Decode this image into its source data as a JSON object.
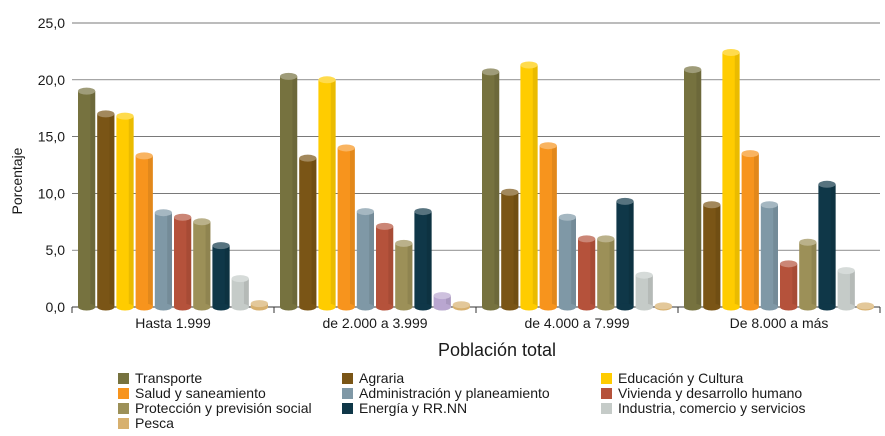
{
  "chart_data": {
    "type": "bar",
    "title": "",
    "xlabel": "Población total",
    "ylabel": "Porcentaje",
    "ylim": [
      0,
      25
    ],
    "yticks": [
      "0,0",
      "5,0",
      "10,0",
      "15,0",
      "20,0",
      "25,0"
    ],
    "grid": true,
    "legend_position": "bottom",
    "categories": [
      "Hasta 1.999",
      "de 2.000 a 3.999",
      "de 4.000 a 7.999",
      "De 8.000 a más"
    ],
    "series": [
      {
        "name": "Transporte",
        "color": "#76723f",
        "values": [
          19.0,
          20.3,
          20.7,
          20.9
        ]
      },
      {
        "name": "Agraria",
        "color": "#7a5516",
        "values": [
          17.0,
          13.1,
          10.1,
          9.0
        ]
      },
      {
        "name": "Educación y Cultura",
        "color": "#ffcc00",
        "values": [
          16.8,
          20.0,
          21.3,
          22.4
        ]
      },
      {
        "name": "Salud y saneamiento",
        "color": "#f7941d",
        "values": [
          13.3,
          14.0,
          14.2,
          13.5
        ]
      },
      {
        "name": "Administración y planeamiento",
        "color": "#7f98a6",
        "values": [
          8.3,
          8.4,
          7.9,
          9.0
        ]
      },
      {
        "name": "Vivienda y desarrollo humano",
        "color": "#b5523b",
        "values": [
          7.9,
          7.1,
          6.0,
          3.8
        ]
      },
      {
        "name": "Protección y previsión social",
        "color": "#9c9058",
        "values": [
          7.5,
          5.6,
          6.0,
          5.7
        ]
      },
      {
        "name": "Energía y RR.NN",
        "color": "#0f3748",
        "values": [
          5.4,
          8.4,
          9.3,
          10.8
        ]
      },
      {
        "name": "Industria, comercio y servicios",
        "color": "#c5cbc8",
        "values": [
          2.5,
          0.0,
          2.8,
          3.2
        ]
      },
      {
        "name": "Pesca",
        "color": "#d7b06e",
        "values": [
          0.3,
          0.2,
          0.1,
          0.1
        ]
      }
    ],
    "annotations": [
      {
        "category": "de 2.000 a 3.999",
        "color": "#b9a6d0",
        "value": 1.0
      }
    ]
  }
}
